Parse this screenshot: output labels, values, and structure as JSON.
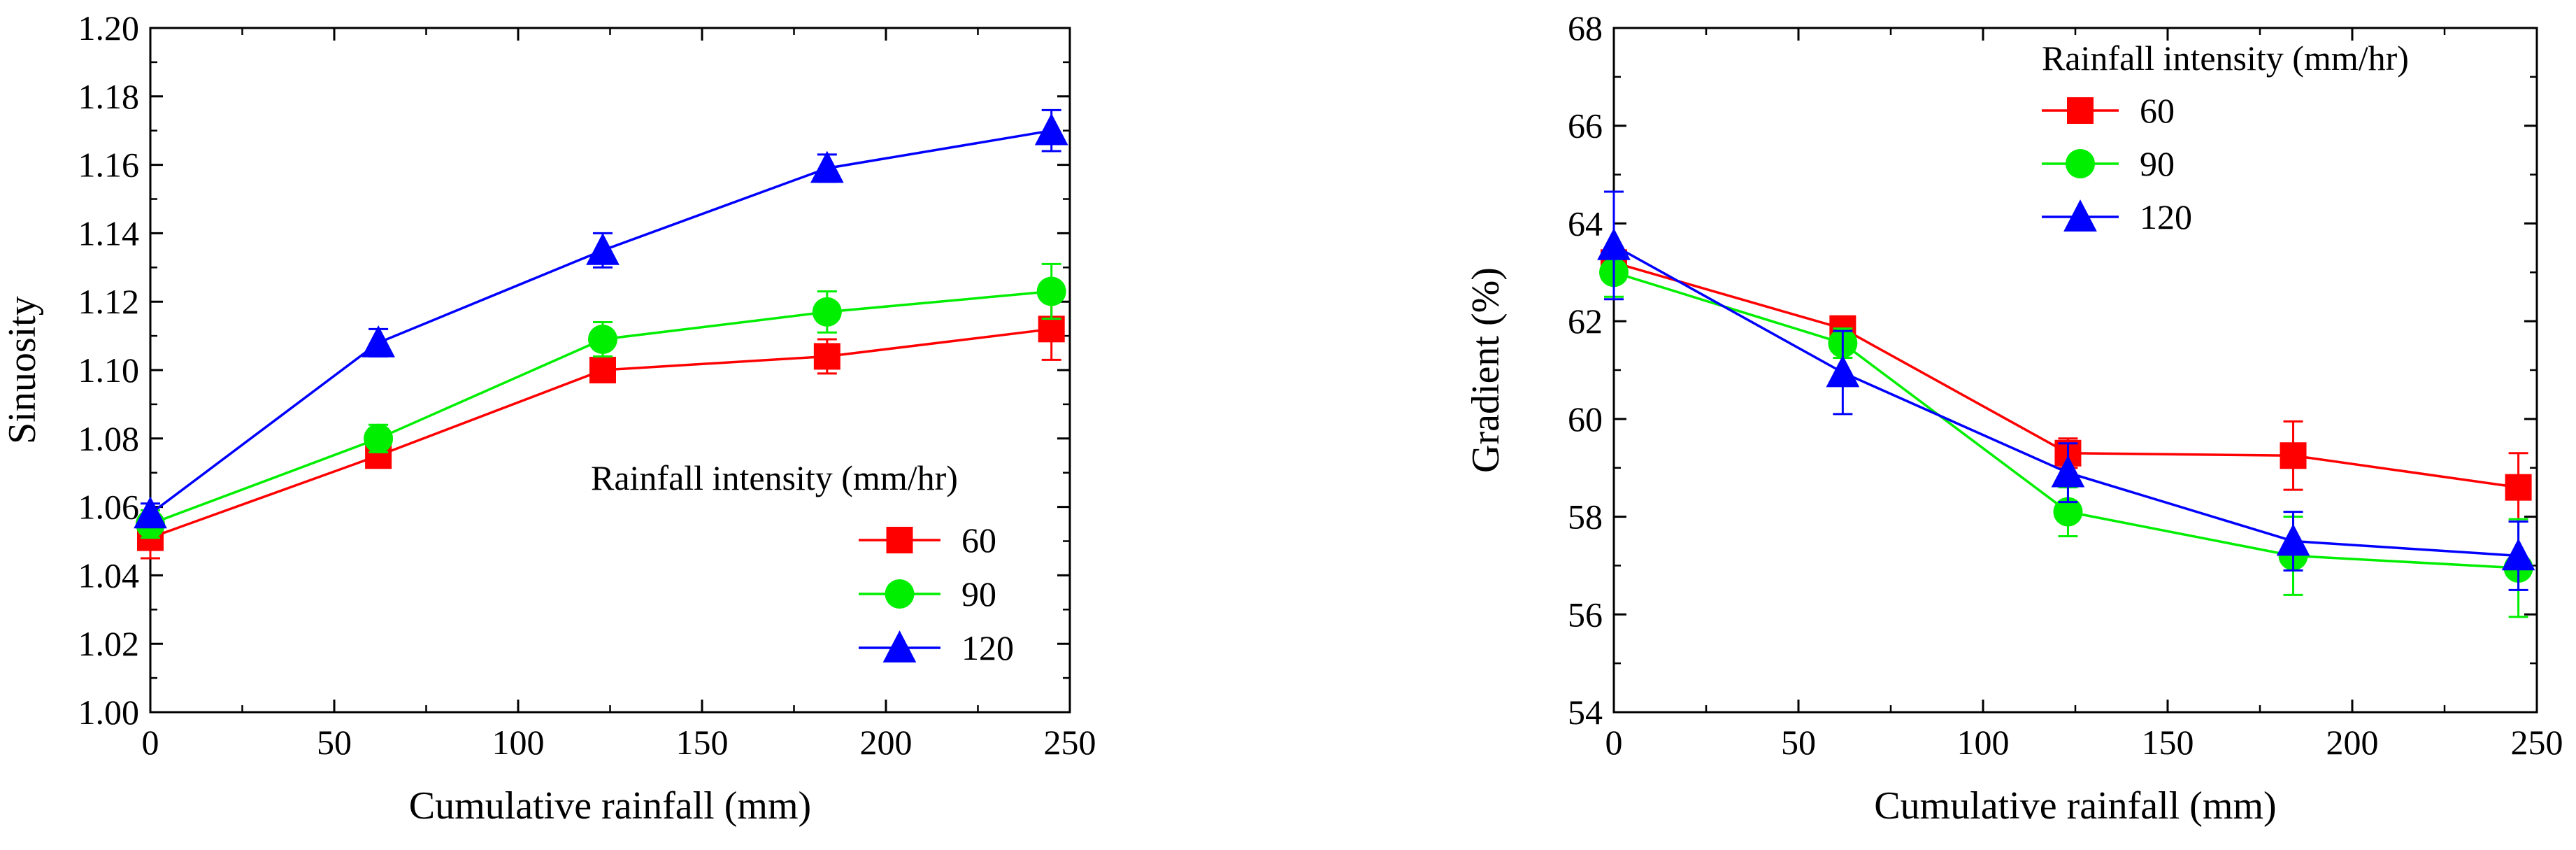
{
  "chart_data": [
    {
      "type": "line",
      "xlabel": "Cumulative rainfall (mm)",
      "ylabel": "Sinuosity",
      "xlim": [
        0,
        250
      ],
      "ylim": [
        1.0,
        1.2
      ],
      "xticks": [
        "0",
        "50",
        "100",
        "150",
        "200",
        "250"
      ],
      "yticks": [
        "1.00",
        "1.02",
        "1.04",
        "1.06",
        "1.08",
        "1.10",
        "1.12",
        "1.14",
        "1.16",
        "1.18",
        "1.20"
      ],
      "legend_title": "Rainfall intensity (mm/hr)",
      "legend_position": "bottom-right",
      "x": [
        0,
        62,
        123,
        184,
        245
      ],
      "series": [
        {
          "name": "60",
          "color": "#ff0000",
          "marker": "square",
          "values": [
            1.051,
            1.075,
            1.1,
            1.104,
            1.112
          ],
          "errors": [
            0.006,
            0.003,
            0.002,
            0.005,
            0.009
          ]
        },
        {
          "name": "90",
          "color": "#00ee00",
          "marker": "circle",
          "values": [
            1.055,
            1.08,
            1.109,
            1.117,
            1.123
          ],
          "errors": [
            0.004,
            0.004,
            0.005,
            0.006,
            0.008
          ]
        },
        {
          "name": "120",
          "color": "#0000ff",
          "marker": "triangle",
          "values": [
            1.058,
            1.108,
            1.135,
            1.159,
            1.17
          ],
          "errors": [
            0.003,
            0.004,
            0.005,
            0.004,
            0.006
          ]
        }
      ]
    },
    {
      "type": "line",
      "xlabel": "Cumulative rainfall (mm)",
      "ylabel": "Gradient (%)",
      "xlim": [
        0,
        250
      ],
      "ylim": [
        54,
        68
      ],
      "xticks": [
        "0",
        "50",
        "100",
        "150",
        "200",
        "250"
      ],
      "yticks": [
        "54",
        "56",
        "58",
        "60",
        "62",
        "64",
        "66",
        "68"
      ],
      "legend_title": "Rainfall intensity (mm/hr)",
      "legend_position": "top-right",
      "x": [
        0,
        62,
        123,
        184,
        245
      ],
      "series": [
        {
          "name": "60",
          "color": "#ff0000",
          "marker": "square",
          "values": [
            63.2,
            61.85,
            59.3,
            59.25,
            58.6
          ],
          "errors": [
            0.3,
            0.2,
            0.3,
            0.7,
            0.7
          ]
        },
        {
          "name": "90",
          "color": "#00ee00",
          "marker": "circle",
          "values": [
            63.0,
            61.55,
            58.1,
            57.2,
            56.95
          ],
          "errors": [
            0.5,
            0.3,
            0.5,
            0.8,
            1.0
          ]
        },
        {
          "name": "120",
          "color": "#0000ff",
          "marker": "triangle",
          "values": [
            63.55,
            60.95,
            58.9,
            57.5,
            57.2
          ],
          "errors": [
            1.1,
            0.85,
            0.6,
            0.6,
            0.7
          ]
        }
      ]
    }
  ]
}
